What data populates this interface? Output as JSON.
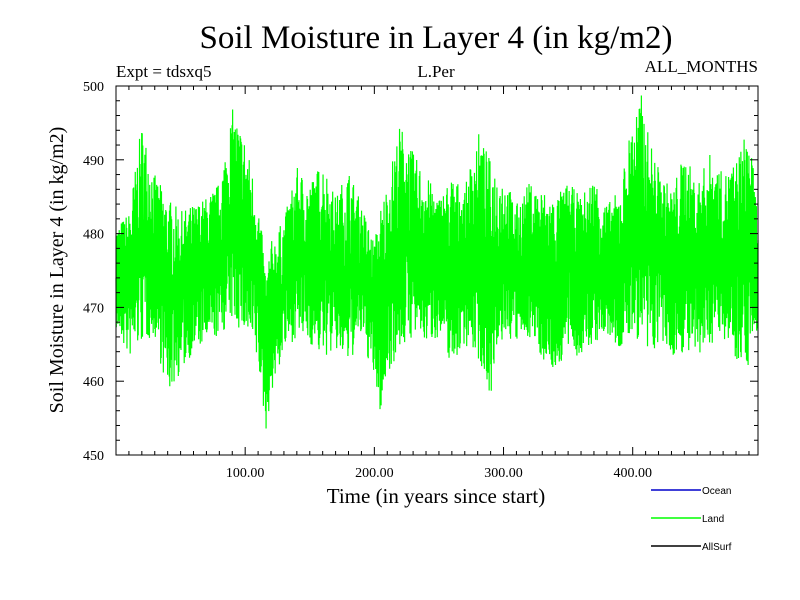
{
  "chart_data": {
    "type": "line",
    "title": "Soil Moisture in Layer 4 (in kg/m2)",
    "subtitle_left": "Expt = tdsxq5",
    "subtitle_center": "L.Per",
    "subtitle_right": "ALL_MONTHS",
    "xlabel": "Time (in years since start)",
    "ylabel": "Soil Moisture in Layer 4 (in kg/m2)",
    "xlim": [
      0,
      497
    ],
    "ylim": [
      450,
      500
    ],
    "x_ticks": [
      100,
      200,
      300,
      400
    ],
    "x_tick_labels": [
      "100.00",
      "200.00",
      "300.00",
      "400.00"
    ],
    "y_ticks": [
      450,
      460,
      470,
      480,
      490,
      500
    ],
    "y_tick_labels": [
      "450",
      "460",
      "470",
      "480",
      "490",
      "500"
    ],
    "legend": [
      {
        "name": "Ocean",
        "color": "#0000cc"
      },
      {
        "name": "Land",
        "color": "#00ff00"
      },
      {
        "name": "AllSurf",
        "color": "#000000"
      }
    ],
    "series": [
      {
        "name": "Land",
        "color": "#00ff00",
        "x": [
          0,
          10,
          20,
          30,
          40,
          50,
          60,
          70,
          80,
          90,
          100,
          110,
          116,
          120,
          130,
          140,
          150,
          160,
          170,
          180,
          190,
          200,
          205,
          210,
          220,
          230,
          240,
          250,
          260,
          270,
          280,
          290,
          300,
          310,
          320,
          330,
          340,
          350,
          360,
          370,
          380,
          390,
          400,
          407,
          410,
          420,
          430,
          440,
          450,
          460,
          470,
          480,
          490,
          497
        ],
        "envelope_max": [
          481,
          483,
          495,
          488,
          485,
          483,
          484,
          485,
          487,
          497,
          493,
          485,
          475,
          479,
          482,
          489,
          487,
          490,
          485,
          489,
          484,
          479,
          484,
          487,
          495,
          491,
          488,
          485,
          488,
          486,
          494,
          490,
          488,
          484,
          487,
          486,
          485,
          487,
          485,
          488,
          484,
          486,
          496,
          499,
          495,
          489,
          486,
          491,
          487,
          491,
          488,
          490,
          495,
          482
        ],
        "envelope_min": [
          467,
          463,
          465,
          466,
          458,
          461,
          464,
          465,
          466,
          468,
          466,
          462,
          453,
          458,
          464,
          466,
          465,
          463,
          464,
          462,
          466,
          460,
          455,
          461,
          464,
          466,
          465,
          466,
          462,
          465,
          463,
          458,
          466,
          465,
          466,
          463,
          461,
          464,
          463,
          465,
          466,
          464,
          466,
          465,
          462,
          465,
          463,
          464,
          462,
          465,
          466,
          463,
          462,
          467
        ],
        "mean_trend": [
          474,
          473,
          480,
          477,
          472,
          473,
          474,
          475,
          476,
          482,
          480,
          474,
          464,
          468,
          473,
          477,
          476,
          477,
          475,
          475,
          475,
          470,
          469,
          474,
          480,
          478,
          477,
          476,
          475,
          476,
          479,
          474,
          477,
          475,
          476,
          475,
          473,
          476,
          474,
          476,
          475,
          475,
          481,
          482,
          479,
          477,
          475,
          478,
          475,
          478,
          477,
          477,
          479,
          476
        ]
      }
    ]
  }
}
